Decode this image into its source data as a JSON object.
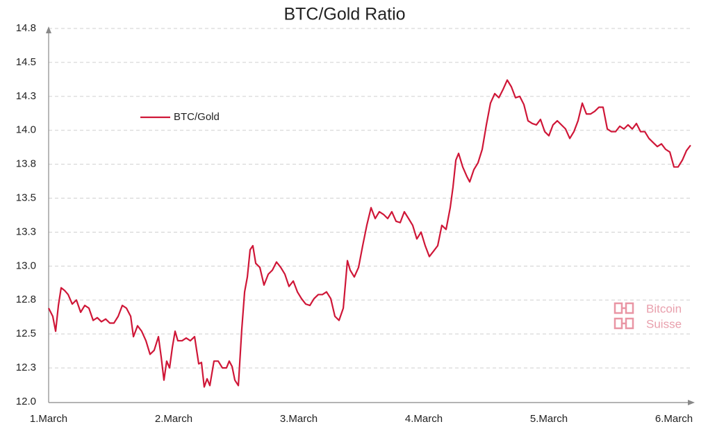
{
  "chart_data": {
    "type": "line",
    "title": "BTC/Gold Ratio",
    "x": [
      0,
      0.033,
      0.056,
      0.078,
      0.1,
      0.128,
      0.156,
      0.189,
      0.222,
      0.256,
      0.289,
      0.322,
      0.356,
      0.389,
      0.422,
      0.456,
      0.489,
      0.522,
      0.556,
      0.589,
      0.622,
      0.656,
      0.678,
      0.711,
      0.744,
      0.778,
      0.811,
      0.844,
      0.878,
      0.9,
      0.922,
      0.944,
      0.967,
      0.989,
      1.011,
      1.033,
      1.067,
      1.1,
      1.133,
      1.167,
      1.2,
      1.222,
      1.244,
      1.267,
      1.289,
      1.322,
      1.356,
      1.389,
      1.422,
      1.444,
      1.467,
      1.489,
      1.517,
      1.544,
      1.567,
      1.589,
      1.611,
      1.633,
      1.656,
      1.689,
      1.722,
      1.756,
      1.789,
      1.822,
      1.856,
      1.889,
      1.922,
      1.956,
      1.989,
      2.022,
      2.056,
      2.089,
      2.122,
      2.156,
      2.189,
      2.222,
      2.256,
      2.289,
      2.322,
      2.356,
      2.389,
      2.411,
      2.444,
      2.478,
      2.511,
      2.544,
      2.578,
      2.611,
      2.644,
      2.678,
      2.711,
      2.744,
      2.778,
      2.811,
      2.844,
      2.878,
      2.911,
      2.944,
      2.978,
      3.011,
      3.044,
      3.078,
      3.111,
      3.144,
      3.178,
      3.211,
      3.233,
      3.256,
      3.278,
      3.311,
      3.344,
      3.367,
      3.4,
      3.433,
      3.467,
      3.5,
      3.533,
      3.567,
      3.6,
      3.633,
      3.667,
      3.7,
      3.733,
      3.767,
      3.8,
      3.833,
      3.867,
      3.9,
      3.933,
      3.967,
      4.0,
      4.033,
      4.067,
      4.1,
      4.133,
      4.167,
      4.2,
      4.233,
      4.267,
      4.3,
      4.333,
      4.367,
      4.4,
      4.433,
      4.467,
      4.5,
      4.533,
      4.567,
      4.6,
      4.633,
      4.667,
      4.7,
      4.733,
      4.767,
      4.8,
      4.833,
      4.867,
      4.9,
      4.933,
      4.967,
      5.0,
      5.033,
      5.067,
      5.1,
      5.133
    ],
    "series": [
      {
        "name": "BTC/Gold",
        "color": "#cf1637",
        "values": [
          12.69,
          12.63,
          12.52,
          12.71,
          12.84,
          12.82,
          12.79,
          12.72,
          12.75,
          12.66,
          12.71,
          12.69,
          12.6,
          12.62,
          12.59,
          12.61,
          12.58,
          12.58,
          12.63,
          12.71,
          12.69,
          12.63,
          12.48,
          12.56,
          12.52,
          12.45,
          12.35,
          12.38,
          12.48,
          12.33,
          12.16,
          12.3,
          12.25,
          12.4,
          12.52,
          12.45,
          12.45,
          12.47,
          12.45,
          12.48,
          12.28,
          12.29,
          12.11,
          12.17,
          12.12,
          12.3,
          12.3,
          12.25,
          12.25,
          12.3,
          12.26,
          12.16,
          12.12,
          12.53,
          12.81,
          12.92,
          13.12,
          13.15,
          13.02,
          12.99,
          12.86,
          12.94,
          12.97,
          13.03,
          12.99,
          12.94,
          12.85,
          12.89,
          12.81,
          12.76,
          12.72,
          12.71,
          12.76,
          12.79,
          12.79,
          12.81,
          12.76,
          12.63,
          12.6,
          12.69,
          13.04,
          12.97,
          12.92,
          12.99,
          13.15,
          13.3,
          13.43,
          13.35,
          13.4,
          13.38,
          13.35,
          13.4,
          13.33,
          13.32,
          13.4,
          13.35,
          13.3,
          13.2,
          13.25,
          13.15,
          13.07,
          13.11,
          13.15,
          13.3,
          13.27,
          13.43,
          13.58,
          13.78,
          13.83,
          13.73,
          13.66,
          13.62,
          13.71,
          13.76,
          13.86,
          14.04,
          14.2,
          14.27,
          14.24,
          14.3,
          14.37,
          14.32,
          14.24,
          14.25,
          14.19,
          14.07,
          14.05,
          14.04,
          14.08,
          13.99,
          13.96,
          14.04,
          14.07,
          14.04,
          14.01,
          13.94,
          13.99,
          14.07,
          14.2,
          14.12,
          14.12,
          14.14,
          14.17,
          14.17,
          14.01,
          13.99,
          13.99,
          14.03,
          14.01,
          14.04,
          14.01,
          14.05,
          13.99,
          13.99,
          13.94,
          13.91,
          13.88,
          13.9,
          13.86,
          13.84,
          13.73,
          13.73,
          13.78,
          13.85,
          13.89
        ]
      }
    ],
    "xlim": [
      0,
      5.15
    ],
    "xticks": [
      {
        "value": 0,
        "label": "1.March"
      },
      {
        "value": 1,
        "label": "2.March"
      },
      {
        "value": 2,
        "label": "3.March"
      },
      {
        "value": 3,
        "label": "4.March"
      },
      {
        "value": 4,
        "label": "5.March"
      },
      {
        "value": 5,
        "label": "6.March"
      }
    ],
    "ylim": [
      12,
      14.75
    ],
    "yticks": [
      {
        "value": 12,
        "label": "12.0"
      },
      {
        "value": 12.25,
        "label": "12.3"
      },
      12.5,
      {
        "value": 12.75,
        "label": "12.8"
      },
      {
        "value": 13,
        "label": "13.0"
      },
      {
        "value": 13.25,
        "label": "13.3"
      },
      13.5,
      {
        "value": 13.75,
        "label": "13.8"
      },
      {
        "value": 14,
        "label": "14.0"
      },
      {
        "value": 14.25,
        "label": "14.3"
      },
      14.5,
      {
        "value": 14.75,
        "label": "14.8"
      }
    ],
    "grid": true,
    "legend": "upper-left",
    "watermark": [
      "Bitcoin",
      "Suisse"
    ]
  }
}
